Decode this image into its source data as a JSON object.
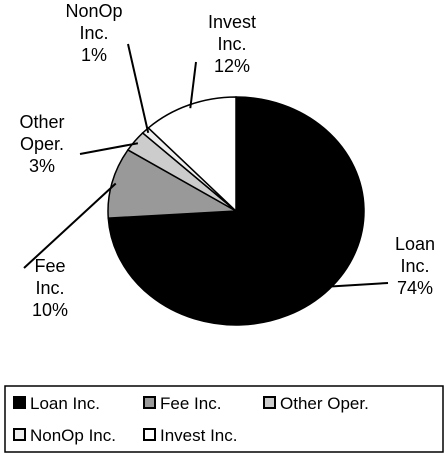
{
  "chart_data": {
    "type": "pie",
    "categories": [
      "Loan Inc.",
      "Fee Inc.",
      "Other Oper.",
      "NonOp Inc.",
      "Invest Inc."
    ],
    "values": [
      74,
      10,
      3,
      1,
      12
    ],
    "value_labels": [
      "74%",
      "10%",
      "3%",
      "1%",
      "12%"
    ],
    "colors": [
      "#000000",
      "#999999",
      "#cccccc",
      "#eeeeee",
      "#ffffff"
    ],
    "legend": "bottom"
  }
}
